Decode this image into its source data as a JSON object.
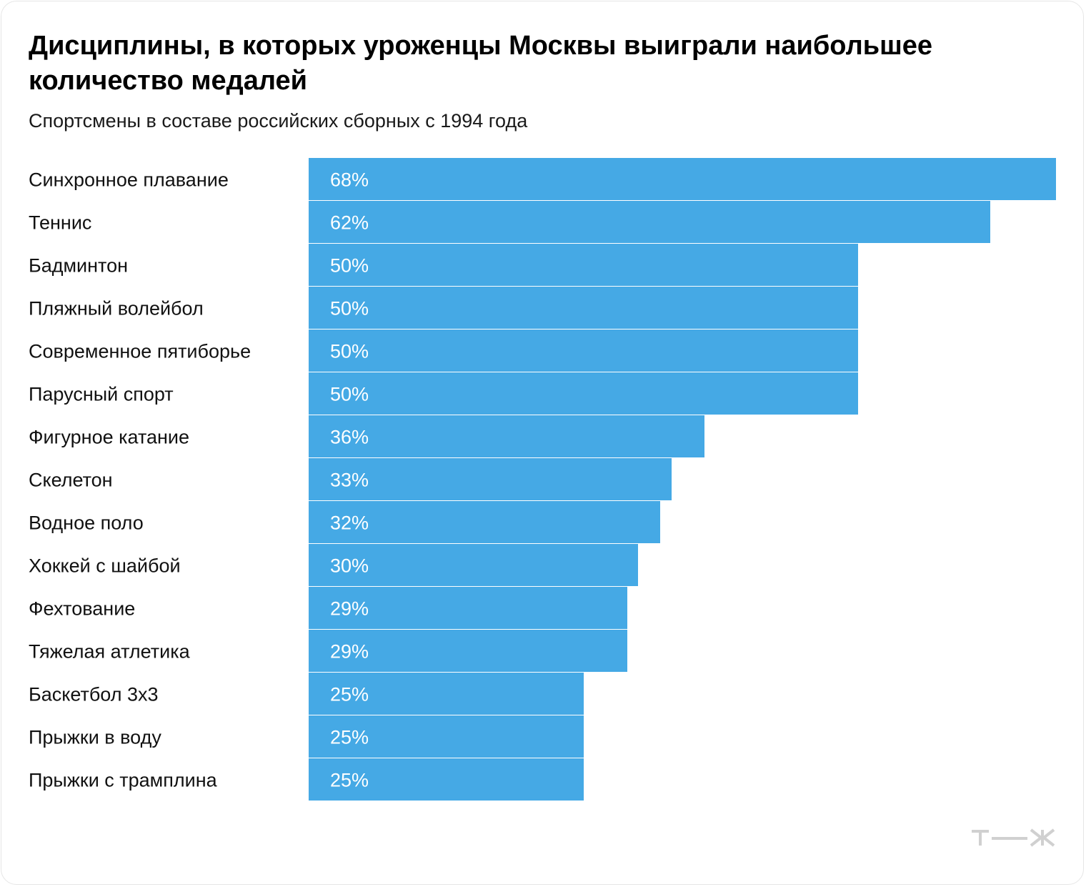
{
  "title": "Дисциплины, в которых уроженцы Москвы выиграли наибольшее количество медалей",
  "subtitle": "Спортсмены в составе российских сборных с 1994 года",
  "colors": {
    "bar": "#45a9e5",
    "logo": "#d0d0d0",
    "text": "#111111"
  },
  "logo_icon": "tzh-logo-icon",
  "chart_data": {
    "type": "bar",
    "orientation": "horizontal",
    "title": "Дисциплины, в которых уроженцы Москвы выиграли наибольшее количество медалей",
    "subtitle": "Спортсмены в составе российских сборных с 1994 года",
    "xlabel": "",
    "ylabel": "",
    "xlim": [
      0,
      68
    ],
    "grid": false,
    "categories": [
      "Синхронное плавание",
      "Теннис",
      "Бадминтон",
      "Пляжный волейбол",
      "Современное пятиборье",
      "Парусный спорт",
      "Фигурное катание",
      "Скелетон",
      "Водное поло",
      "Хоккей с шайбой",
      "Фехтование",
      "Тяжелая атлетика",
      "Баскетбол 3х3",
      "Прыжки в воду",
      "Прыжки с трамплина"
    ],
    "values": [
      68,
      62,
      50,
      50,
      50,
      50,
      36,
      33,
      32,
      30,
      29,
      29,
      25,
      25,
      25
    ],
    "value_labels": [
      "68%",
      "62%",
      "50%",
      "50%",
      "50%",
      "50%",
      "36%",
      "33%",
      "32%",
      "30%",
      "29%",
      "29%",
      "25%",
      "25%",
      "25%"
    ],
    "unit": "%"
  }
}
